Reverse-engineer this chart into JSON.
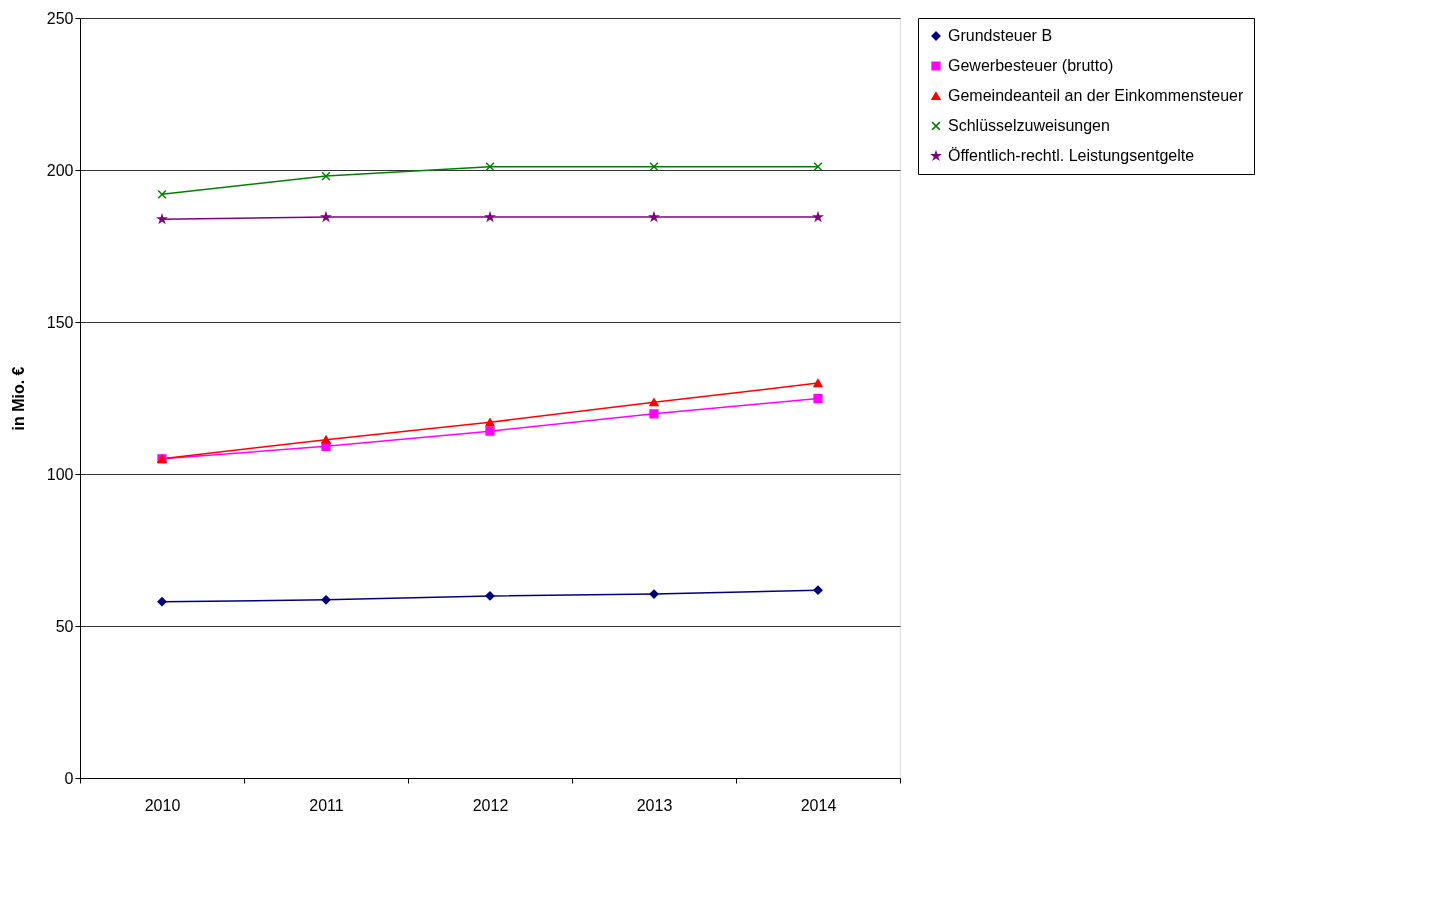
{
  "chart_data": {
    "type": "line",
    "ylabel": "in Mio. €",
    "categories": [
      "2010",
      "2011",
      "2012",
      "2013",
      "2014"
    ],
    "ylim": [
      0,
      250
    ],
    "yticks": [
      0,
      50,
      100,
      150,
      200,
      250
    ],
    "grid": "y",
    "legend": "right",
    "series": [
      {
        "name": "Grundsteuer B",
        "color": "#000080",
        "marker": "diamond",
        "values": [
          58.0,
          58.6,
          59.9,
          60.5,
          61.8
        ]
      },
      {
        "name": "Gewerbesteuer (brutto)",
        "color": "#ff00ff",
        "marker": "square",
        "values": [
          105.0,
          109.1,
          114.1,
          119.8,
          124.8
        ]
      },
      {
        "name": "Gemeindeanteil an der Einkommensteuer",
        "color": "#ff0000",
        "marker": "triangle",
        "values": [
          105.0,
          111.3,
          117.0,
          123.6,
          129.9
        ]
      },
      {
        "name": "Schlüsselzuweisungen",
        "color": "#008000",
        "marker": "cross",
        "values": [
          192.0,
          198.0,
          201.1,
          201.1,
          201.1
        ]
      },
      {
        "name": "Öffentlich-rechtl. Leistungsentgelte",
        "color": "#800080",
        "marker": "star",
        "values": [
          183.8,
          184.5,
          184.5,
          184.5,
          184.5
        ]
      }
    ]
  }
}
